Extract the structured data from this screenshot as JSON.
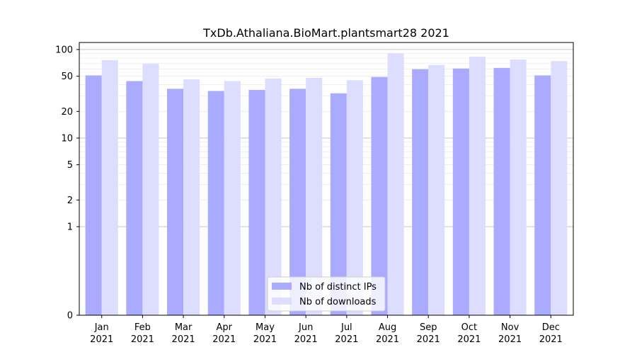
{
  "chart_data": {
    "type": "bar",
    "title": "TxDb.Athaliana.BioMart.plantsmart28 2021",
    "xlabel": "",
    "ylabel": "",
    "scale": "symlog",
    "ylim": [
      0,
      120
    ],
    "categories": [
      [
        "Jan",
        "2021"
      ],
      [
        "Feb",
        "2021"
      ],
      [
        "Mar",
        "2021"
      ],
      [
        "Apr",
        "2021"
      ],
      [
        "May",
        "2021"
      ],
      [
        "Jun",
        "2021"
      ],
      [
        "Jul",
        "2021"
      ],
      [
        "Aug",
        "2021"
      ],
      [
        "Sep",
        "2021"
      ],
      [
        "Oct",
        "2021"
      ],
      [
        "Nov",
        "2021"
      ],
      [
        "Dec",
        "2021"
      ]
    ],
    "yticks": [
      0,
      1,
      2,
      5,
      10,
      20,
      50,
      100
    ],
    "series": [
      {
        "name": "Nb of distinct IPs",
        "color": "#aaaaff",
        "values": [
          51,
          44,
          36,
          34,
          35,
          36,
          32,
          49,
          60,
          61,
          62,
          51
        ]
      },
      {
        "name": "Nb of downloads",
        "color": "#ddddff",
        "values": [
          76,
          69,
          46,
          44,
          47,
          48,
          45,
          91,
          67,
          83,
          77,
          74
        ]
      }
    ],
    "legend_position": "lower-center",
    "grid": true
  }
}
